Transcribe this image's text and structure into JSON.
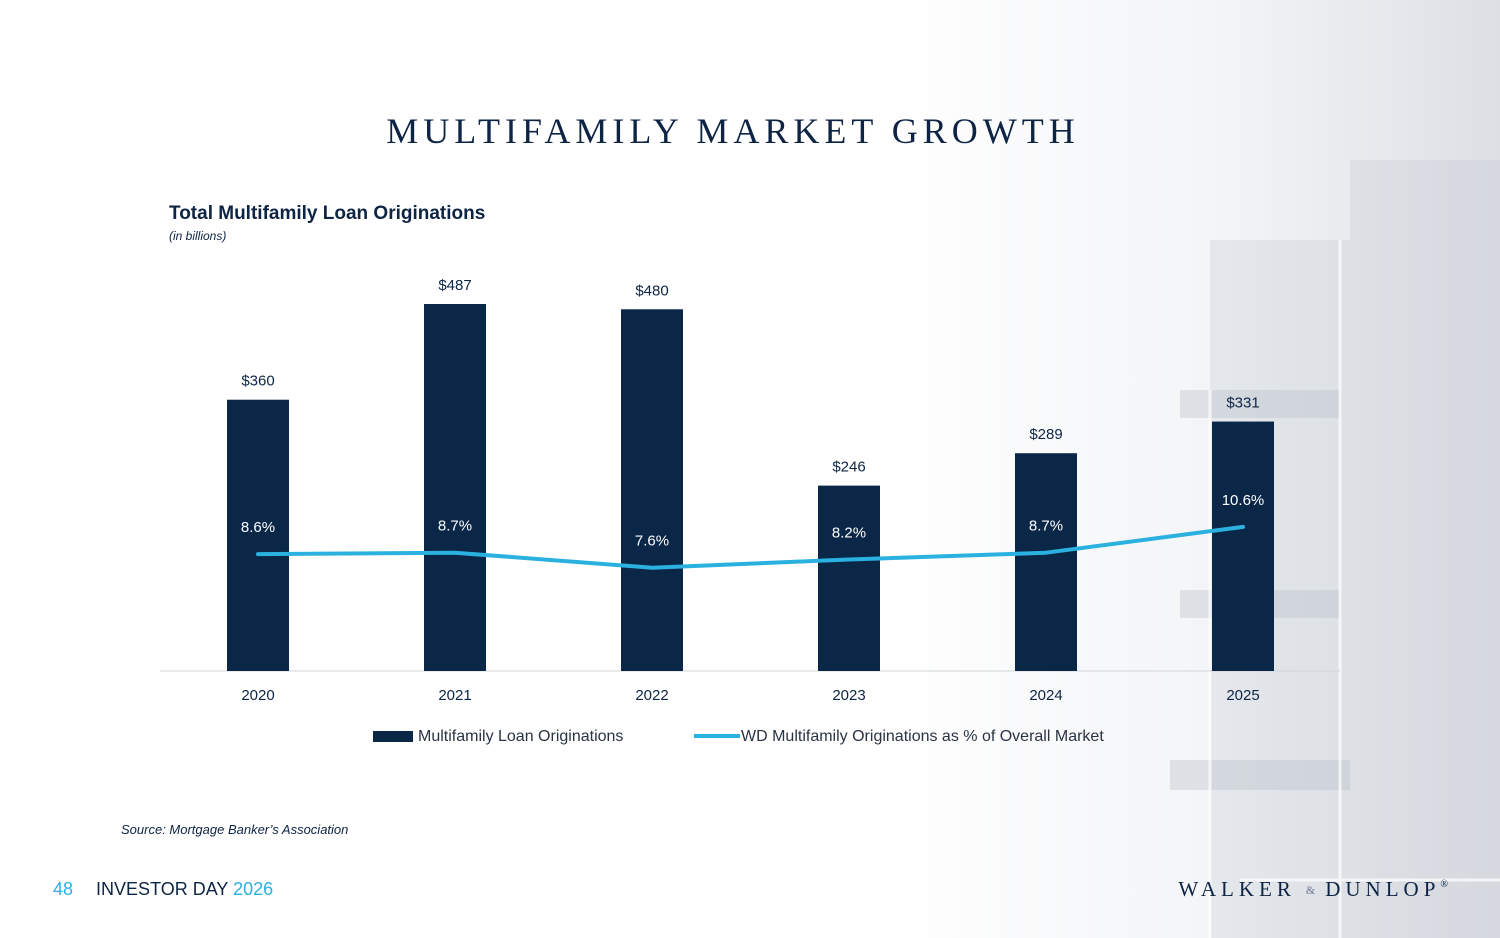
{
  "slide": {
    "title": "MULTIFAMILY MARKET GROWTH",
    "source": "Source: Mortgage Banker’s Association",
    "page_number": "48",
    "event_name": "INVESTOR DAY",
    "event_year": "2026",
    "logo": {
      "part1": "WALKER",
      "amp": "&",
      "part2": "DUNLOP",
      "reg": "®"
    }
  },
  "colors": {
    "navy": "#0b2748",
    "cyan": "#2ab1e0",
    "axis": "#d0d4da"
  },
  "chart_data": {
    "type": "bar",
    "title": "Total Multifamily Loan Originations",
    "subtitle": "(in billions)",
    "categories": [
      "2020",
      "2021",
      "2022",
      "2023",
      "2024",
      "2025"
    ],
    "series": [
      {
        "name": "Multifamily Loan Originations",
        "type": "bar",
        "values": [
          360,
          487,
          480,
          246,
          289,
          331
        ],
        "labels": [
          "$360",
          "$487",
          "$480",
          "$246",
          "$289",
          "$331"
        ]
      },
      {
        "name": "WD Multifamily Originations as % of Overall Market",
        "type": "line",
        "values": [
          8.6,
          8.7,
          7.6,
          8.2,
          8.7,
          10.6
        ],
        "labels": [
          "8.6%",
          "8.7%",
          "7.6%",
          "8.2%",
          "8.7%",
          "10.6%"
        ]
      }
    ],
    "ylim": [
      0,
      487
    ],
    "line_ylim": [
      0,
      27
    ],
    "legend": "bottom"
  }
}
